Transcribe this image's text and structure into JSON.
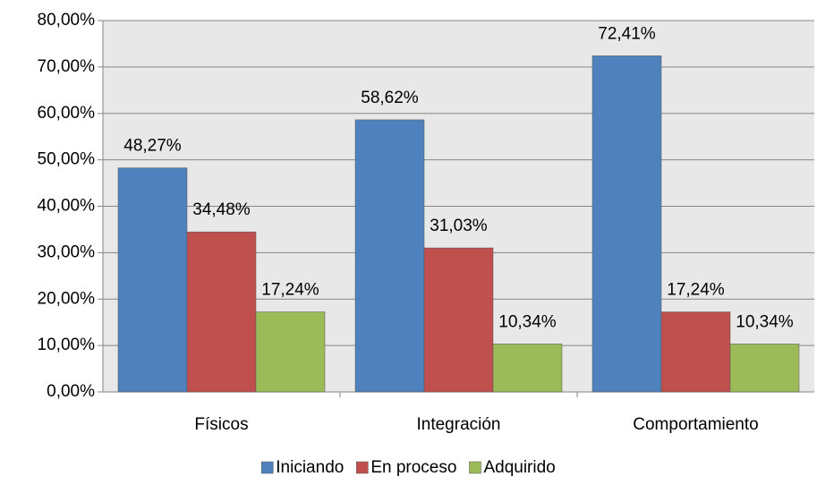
{
  "chart_data": {
    "type": "bar",
    "categories": [
      "Físicos",
      "Integración",
      "Comportamiento"
    ],
    "series": [
      {
        "name": "Iniciando",
        "color": "#4f81bd",
        "values": [
          48.27,
          58.62,
          72.41
        ],
        "value_labels": [
          "48,27%",
          "58,62%",
          "72,41%"
        ]
      },
      {
        "name": "En proceso",
        "color": "#c0504d",
        "values": [
          34.48,
          31.03,
          17.24
        ],
        "value_labels": [
          "34,48%",
          "31,03%",
          "17,24%"
        ]
      },
      {
        "name": "Adquirido",
        "color": "#9bbb59",
        "values": [
          17.24,
          10.34,
          10.34
        ],
        "value_labels": [
          "17,24%",
          "10,34%",
          "10,34%"
        ]
      }
    ],
    "ylim": [
      0,
      80
    ],
    "yticks": [
      {
        "value": 0,
        "label": "0,00%"
      },
      {
        "value": 10,
        "label": "10,00%"
      },
      {
        "value": 20,
        "label": "20,00%"
      },
      {
        "value": 30,
        "label": "30,00%"
      },
      {
        "value": 40,
        "label": "40,00%"
      },
      {
        "value": 50,
        "label": "50,00%"
      },
      {
        "value": 60,
        "label": "60,00%"
      },
      {
        "value": 70,
        "label": "70,00%"
      },
      {
        "value": 80,
        "label": "80,00%"
      }
    ],
    "grid": true,
    "legend": "bottom"
  }
}
